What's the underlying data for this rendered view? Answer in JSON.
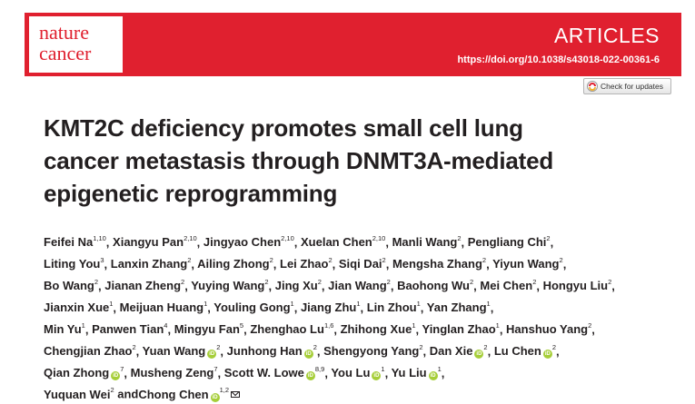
{
  "header": {
    "logo_line1": "nature",
    "logo_line2": "cancer",
    "section": "ARTICLES",
    "doi": "https://doi.org/10.1038/s43018-022-00361-6",
    "brand_color": "#e0202f"
  },
  "check_updates": {
    "label": "Check for updates"
  },
  "title_lines": [
    "KMT2C deficiency promotes small cell lung",
    "cancer metastasis through DNMT3A-mediated",
    "epigenetic reprogramming"
  ],
  "authors": [
    {
      "name": "Feifei Na",
      "aff": "1,10"
    },
    {
      "name": "Xiangyu Pan",
      "aff": "2,10"
    },
    {
      "name": "Jingyao Chen",
      "aff": "2,10"
    },
    {
      "name": "Xuelan Chen",
      "aff": "2,10"
    },
    {
      "name": "Manli Wang",
      "aff": "2"
    },
    {
      "name": "Pengliang Chi",
      "aff": "2"
    },
    {
      "name": "Liting You",
      "aff": "3"
    },
    {
      "name": "Lanxin Zhang",
      "aff": "2"
    },
    {
      "name": "Ailing Zhong",
      "aff": "2"
    },
    {
      "name": "Lei Zhao",
      "aff": "2"
    },
    {
      "name": "Siqi Dai",
      "aff": "2"
    },
    {
      "name": "Mengsha Zhang",
      "aff": "2"
    },
    {
      "name": "Yiyun Wang",
      "aff": "2"
    },
    {
      "name": "Bo Wang",
      "aff": "2"
    },
    {
      "name": "Jianan Zheng",
      "aff": "2"
    },
    {
      "name": "Yuying Wang",
      "aff": "2"
    },
    {
      "name": "Jing Xu",
      "aff": "2"
    },
    {
      "name": "Jian Wang",
      "aff": "2"
    },
    {
      "name": "Baohong Wu",
      "aff": "2"
    },
    {
      "name": "Mei Chen",
      "aff": "2"
    },
    {
      "name": "Hongyu Liu",
      "aff": "2"
    },
    {
      "name": "Jianxin Xue",
      "aff": "1"
    },
    {
      "name": "Meijuan Huang",
      "aff": "1"
    },
    {
      "name": "Youling Gong",
      "aff": "1"
    },
    {
      "name": "Jiang Zhu",
      "aff": "1"
    },
    {
      "name": "Lin Zhou",
      "aff": "1"
    },
    {
      "name": "Yan Zhang",
      "aff": "1"
    },
    {
      "name": "Min Yu",
      "aff": "1"
    },
    {
      "name": "Panwen Tian",
      "aff": "4"
    },
    {
      "name": "Mingyu Fan",
      "aff": "5"
    },
    {
      "name": "Zhenghao Lu",
      "aff": "1,6"
    },
    {
      "name": "Zhihong Xue",
      "aff": "1"
    },
    {
      "name": "Yinglan Zhao",
      "aff": "1"
    },
    {
      "name": "Hanshuo Yang",
      "aff": "2"
    },
    {
      "name": "Chengjian Zhao",
      "aff": "2"
    },
    {
      "name": "Yuan Wang",
      "aff": "2",
      "orcid": true
    },
    {
      "name": "Junhong Han",
      "aff": "2",
      "orcid": true
    },
    {
      "name": "Shengyong Yang",
      "aff": "2"
    },
    {
      "name": "Dan Xie",
      "aff": "2",
      "orcid": true
    },
    {
      "name": "Lu Chen",
      "aff": "2",
      "orcid": true
    },
    {
      "name": "Qian Zhong",
      "aff": "7",
      "orcid": true
    },
    {
      "name": "Musheng Zeng",
      "aff": "7"
    },
    {
      "name": "Scott W. Lowe",
      "aff": "8,9",
      "orcid": true
    },
    {
      "name": "You Lu",
      "aff": "1",
      "orcid": true
    },
    {
      "name": "Yu Liu",
      "aff": "1",
      "orcid": true
    },
    {
      "name": "Yuquan Wei",
      "aff": "2"
    },
    {
      "name": "Chong Chen",
      "aff": "1,2",
      "orcid": true,
      "corresponding": true
    }
  ],
  "author_line_breaks": [
    6,
    13,
    21,
    27,
    34,
    40,
    45,
    47
  ],
  "and_before_index": 45,
  "orcid_glyph": "iD"
}
